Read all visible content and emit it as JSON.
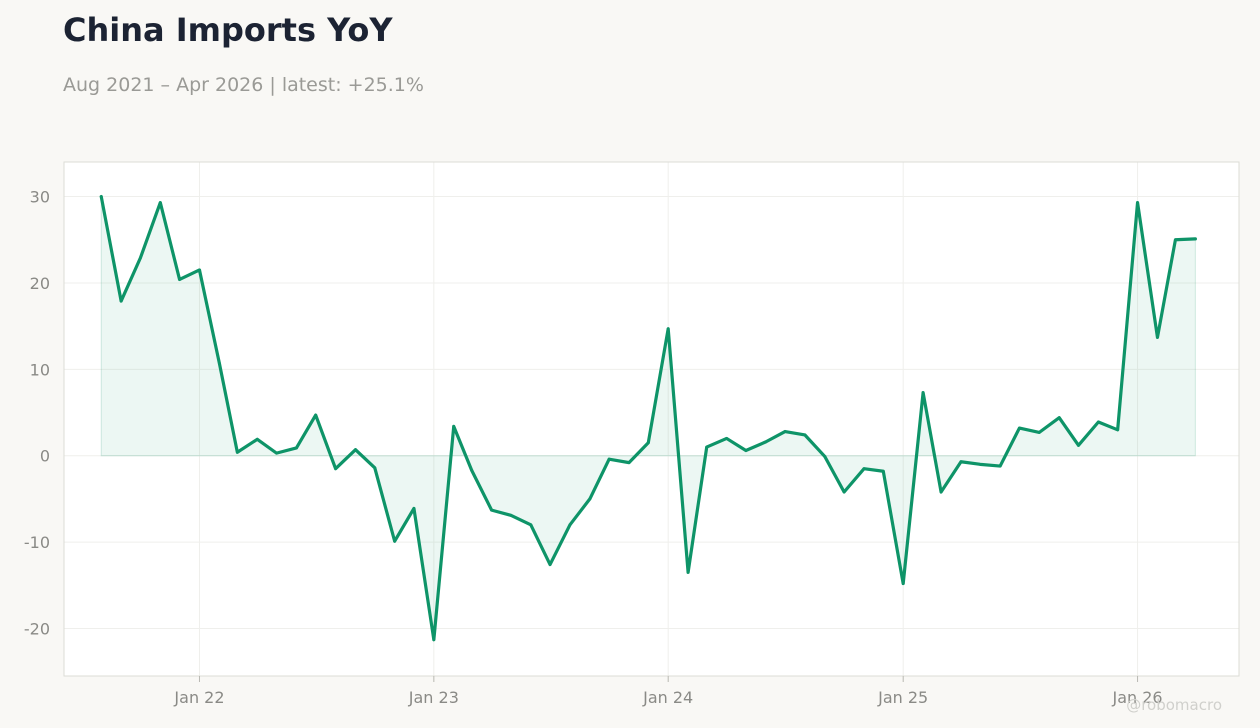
{
  "header": {
    "title": "China Imports YoY",
    "subtitle": "Aug 2021 – Apr 2026 | latest: +25.1%"
  },
  "watermark": "@robomacro",
  "colors": {
    "line": "#0e9468",
    "fill": "#0e9468",
    "grid": "#efefec",
    "frame": "#dcdcd6",
    "background": "#f9f8f5",
    "plot_background": "#ffffff"
  },
  "chart_data": {
    "type": "area",
    "title": "China Imports YoY",
    "xlabel": "",
    "ylabel": "",
    "ylim": [
      -25.5,
      34
    ],
    "xlim": [
      "2021-06-04",
      "2026-06-08"
    ],
    "grid": true,
    "y_ticks": [
      -20,
      -10,
      0,
      10,
      20,
      30
    ],
    "x_ticks": [
      {
        "date": "2022-01",
        "label": "Jan 22"
      },
      {
        "date": "2023-01",
        "label": "Jan 23"
      },
      {
        "date": "2024-01",
        "label": "Jan 24"
      },
      {
        "date": "2025-01",
        "label": "Jan 25"
      },
      {
        "date": "2026-01",
        "label": "Jan 26"
      }
    ],
    "series": [
      {
        "dates": [
          "2021-08",
          "2021-09",
          "2021-10",
          "2021-11",
          "2021-12",
          "2022-01",
          "2022-02",
          "2022-03",
          "2022-04",
          "2022-05",
          "2022-06",
          "2022-07",
          "2022-08",
          "2022-09",
          "2022-10",
          "2022-11",
          "2022-12",
          "2023-01",
          "2023-02",
          "2023-03",
          "2023-04",
          "2023-05",
          "2023-06",
          "2023-07",
          "2023-08",
          "2023-09",
          "2023-10",
          "2023-11",
          "2023-12",
          "2024-01",
          "2024-02",
          "2024-03",
          "2024-04",
          "2024-05",
          "2024-06",
          "2024-07",
          "2024-08",
          "2024-09",
          "2024-10",
          "2024-11",
          "2024-12",
          "2025-01",
          "2025-02",
          "2025-03",
          "2025-04",
          "2025-05",
          "2025-06",
          "2025-07",
          "2025-08",
          "2025-09",
          "2025-10",
          "2025-11",
          "2025-12",
          "2026-01",
          "2026-02",
          "2026-03",
          "2026-04"
        ],
        "values": [
          30.0,
          17.9,
          22.9,
          29.3,
          20.4,
          21.5,
          10.7,
          0.4,
          1.9,
          0.3,
          0.9,
          4.7,
          -1.5,
          0.7,
          -1.4,
          -9.9,
          -6.1,
          -21.3,
          3.4,
          -1.7,
          -6.3,
          -6.9,
          -8.0,
          -12.6,
          -8.0,
          -5.0,
          -0.4,
          -0.8,
          1.5,
          14.7,
          -13.5,
          1.0,
          2.0,
          0.6,
          1.6,
          2.8,
          2.4,
          -0.1,
          -4.2,
          -1.5,
          -1.8,
          -14.8,
          7.3,
          -4.2,
          -0.7,
          -1.0,
          -1.2,
          3.2,
          2.7,
          4.4,
          1.2,
          3.9,
          3.0,
          29.3,
          13.7,
          25.0,
          25.1
        ]
      }
    ]
  }
}
